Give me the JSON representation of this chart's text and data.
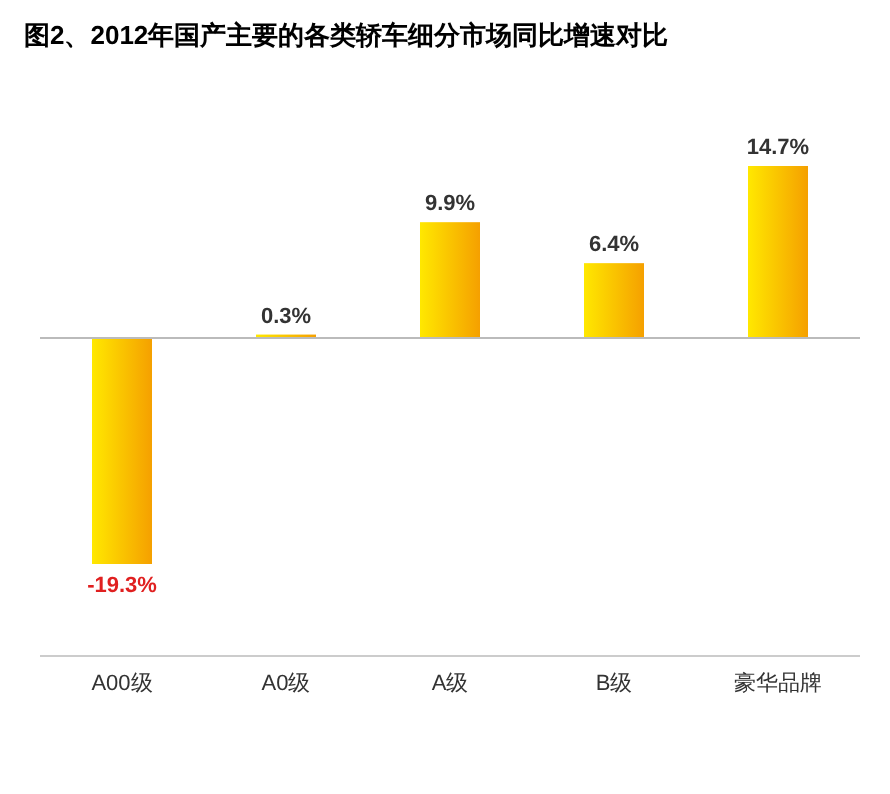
{
  "chart_data": {
    "type": "bar",
    "title": "图2、2012年国产主要的各类轿车细分市场同比增速对比",
    "categories": [
      "A00级",
      "A0级",
      "A级",
      "B级",
      "豪华品牌"
    ],
    "values": [
      -19.3,
      0.3,
      9.9,
      6.4,
      14.7
    ],
    "value_labels": [
      "-19.3%",
      "0.3%",
      "9.9%",
      "6.4%",
      "14.7%"
    ],
    "color": "#f5a000"
  }
}
